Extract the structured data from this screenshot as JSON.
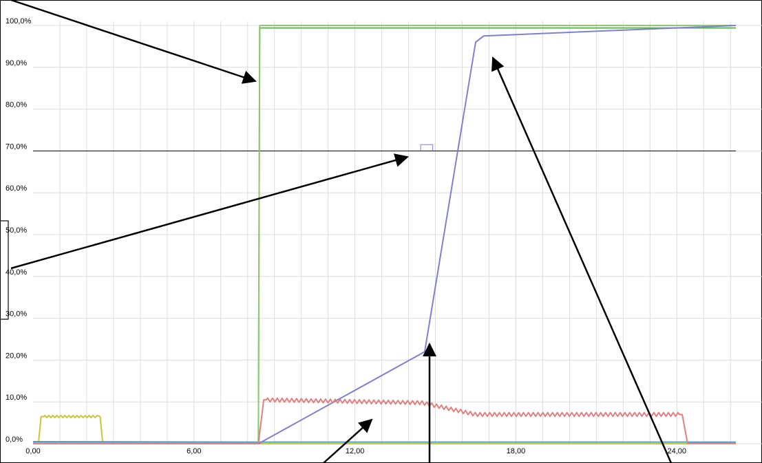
{
  "chart_data": {
    "type": "line",
    "title": "",
    "xlabel": "",
    "ylabel": "",
    "xlim": [
      0,
      26.2
    ],
    "ylim": [
      0,
      100
    ],
    "grid": true,
    "x_ticks": [
      0,
      6,
      12,
      18,
      24
    ],
    "x_tick_labels": [
      "0,00",
      "6,00",
      "12,00",
      "18,00",
      "24,00"
    ],
    "y_ticks": [
      0,
      10,
      20,
      30,
      40,
      50,
      60,
      70,
      80,
      90,
      100
    ],
    "y_tick_labels": [
      "0,0%",
      "10,0%",
      "20,0%",
      "30,0%",
      "40,0%",
      "50,0%",
      "60,0%",
      "70,0%",
      "80,0%",
      "90,0%",
      "100,0%"
    ],
    "threshold": {
      "y": 70,
      "color": "#000000"
    },
    "marker": {
      "x": [
        14.45,
        14.9
      ],
      "y": 71.5,
      "color": "#7f7fd0"
    },
    "series": [
      {
        "color": "#c8c832",
        "points": [
          [
            0,
            0
          ],
          [
            0.2,
            0
          ],
          [
            0.3,
            6.5
          ],
          [
            2.5,
            6.5
          ],
          [
            2.6,
            0
          ],
          [
            26.2,
            0
          ]
        ],
        "wavy": {
          "from": 0.4,
          "to": 2.4,
          "amp": 0.25,
          "period": 0.15
        }
      },
      {
        "color": "#60b850",
        "points": [
          [
            0,
            0
          ],
          [
            8.4,
            0
          ],
          [
            8.45,
            99.4
          ],
          [
            26.2,
            99.4
          ]
        ]
      },
      {
        "color": "#8fc870",
        "points": [
          [
            0,
            0.3
          ],
          [
            8.4,
            0.3
          ],
          [
            8.45,
            100
          ],
          [
            26.2,
            100
          ]
        ]
      },
      {
        "color": "#4aa0c8",
        "points": [
          [
            0,
            0.5
          ],
          [
            8.4,
            0.4
          ],
          [
            26.2,
            0.4
          ]
        ]
      },
      {
        "color": "#7f7fd0",
        "points": [
          [
            0,
            0
          ],
          [
            8.4,
            0
          ],
          [
            14.6,
            22
          ],
          [
            16.5,
            96
          ],
          [
            16.8,
            97.5
          ],
          [
            26.2,
            100
          ]
        ]
      },
      {
        "color": "#e08080",
        "points": [
          [
            0,
            0
          ],
          [
            8.4,
            0
          ],
          [
            8.6,
            10.5
          ],
          [
            14.5,
            9.8
          ],
          [
            16.5,
            7.0
          ],
          [
            24.2,
            7.0
          ],
          [
            24.4,
            0.1
          ],
          [
            26.2,
            0.1
          ]
        ],
        "wavy": {
          "from": 8.7,
          "to": 24.1,
          "amp": 0.45,
          "period": 0.18
        }
      }
    ]
  },
  "annotations": {
    "arrows": [
      {
        "from": [
          16,
          0
        ],
        "to": [
          371,
          118
        ]
      },
      {
        "from": [
          16,
          390
        ],
        "to": [
          592,
          228
        ]
      },
      {
        "from": [
          470,
          673
        ],
        "to": [
          540,
          610
        ]
      },
      {
        "from": [
          624,
          673
        ],
        "to": [
          624,
          500
        ]
      },
      {
        "from": [
          975,
          673
        ],
        "to": [
          716,
          84
        ]
      }
    ],
    "side_box": {
      "color": "#000000"
    }
  }
}
